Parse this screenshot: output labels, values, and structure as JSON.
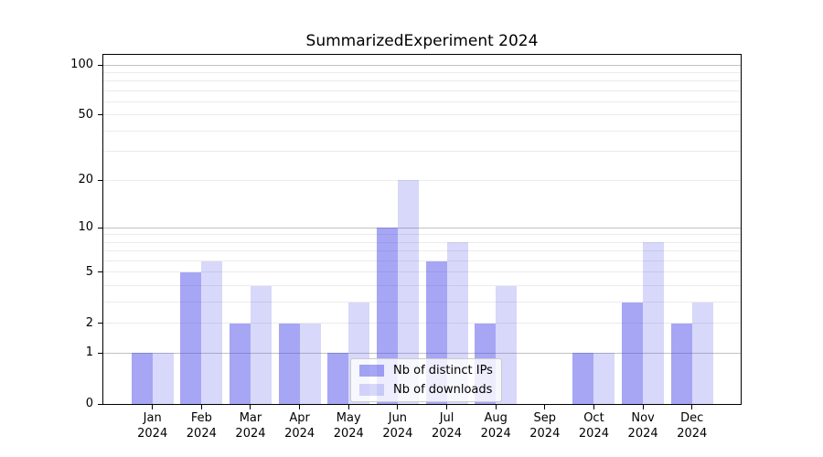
{
  "chart_data": {
    "type": "bar",
    "title": "SummarizedExperiment 2024",
    "year_label": "2024",
    "months": [
      "Jan",
      "Feb",
      "Mar",
      "Apr",
      "May",
      "Jun",
      "Jul",
      "Aug",
      "Sep",
      "Oct",
      "Nov",
      "Dec"
    ],
    "series": [
      {
        "name": "Nb of distinct IPs",
        "color": "rgba(60,60,230,0.46)",
        "values": [
          1,
          5,
          2,
          2,
          1,
          10,
          6,
          2,
          0,
          1,
          3,
          2
        ]
      },
      {
        "name": "Nb of downloads",
        "color": "rgba(60,60,230,0.20)",
        "values": [
          1,
          6,
          4,
          2,
          3,
          20,
          8,
          4,
          0,
          1,
          8,
          3
        ]
      }
    ],
    "yscale": "log1p",
    "ylim": [
      0,
      100
    ],
    "yticks": [
      0,
      1,
      2,
      5,
      10,
      20,
      50,
      100
    ],
    "grid": {
      "minor": [
        2,
        3,
        4,
        5,
        6,
        7,
        8,
        9,
        20,
        30,
        40,
        50,
        60,
        70,
        80,
        90
      ],
      "major": [
        1,
        10,
        100
      ]
    },
    "colors": {
      "grid_minor": "#ebebeb",
      "grid_major": "#c2c2c2",
      "axis": "#000000"
    },
    "legend": {
      "position": "lower center"
    }
  }
}
